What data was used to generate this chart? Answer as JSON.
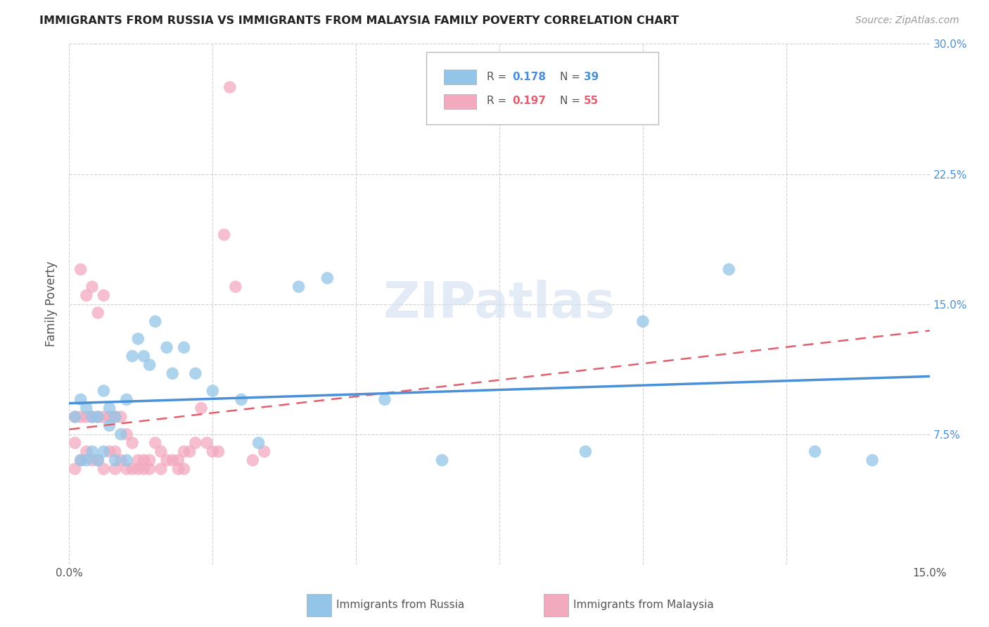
{
  "title": "IMMIGRANTS FROM RUSSIA VS IMMIGRANTS FROM MALAYSIA FAMILY POVERTY CORRELATION CHART",
  "source": "Source: ZipAtlas.com",
  "ylabel": "Family Poverty",
  "xlim": [
    0.0,
    0.15
  ],
  "ylim": [
    0.0,
    0.3
  ],
  "xtick_positions": [
    0.0,
    0.025,
    0.05,
    0.075,
    0.1,
    0.125,
    0.15
  ],
  "xtick_labels": [
    "0.0%",
    "",
    "",
    "",
    "",
    "",
    "15.0%"
  ],
  "ytick_positions": [
    0.0,
    0.075,
    0.15,
    0.225,
    0.3
  ],
  "ytick_labels_right": [
    "",
    "7.5%",
    "15.0%",
    "22.5%",
    "30.0%"
  ],
  "russia_color": "#93C5E8",
  "malaysia_color": "#F2AABF",
  "russia_line_color": "#4A90D9",
  "malaysia_line_color": "#E06070",
  "label_russia": "Immigrants from Russia",
  "label_malaysia": "Immigrants from Malaysia",
  "russia_x": [
    0.001,
    0.002,
    0.002,
    0.003,
    0.003,
    0.004,
    0.004,
    0.005,
    0.005,
    0.006,
    0.006,
    0.007,
    0.007,
    0.008,
    0.008,
    0.009,
    0.01,
    0.01,
    0.011,
    0.012,
    0.013,
    0.014,
    0.015,
    0.017,
    0.018,
    0.02,
    0.022,
    0.025,
    0.03,
    0.033,
    0.04,
    0.045,
    0.055,
    0.065,
    0.09,
    0.1,
    0.115,
    0.13,
    0.14
  ],
  "russia_y": [
    0.085,
    0.095,
    0.06,
    0.09,
    0.06,
    0.085,
    0.065,
    0.085,
    0.06,
    0.1,
    0.065,
    0.09,
    0.08,
    0.085,
    0.06,
    0.075,
    0.095,
    0.06,
    0.12,
    0.13,
    0.12,
    0.115,
    0.14,
    0.125,
    0.11,
    0.125,
    0.11,
    0.1,
    0.095,
    0.07,
    0.16,
    0.165,
    0.095,
    0.06,
    0.065,
    0.14,
    0.17,
    0.065,
    0.06
  ],
  "malaysia_x": [
    0.001,
    0.001,
    0.001,
    0.002,
    0.002,
    0.002,
    0.003,
    0.003,
    0.003,
    0.004,
    0.004,
    0.004,
    0.005,
    0.005,
    0.005,
    0.006,
    0.006,
    0.006,
    0.007,
    0.007,
    0.008,
    0.008,
    0.008,
    0.009,
    0.009,
    0.01,
    0.01,
    0.011,
    0.011,
    0.012,
    0.012,
    0.013,
    0.013,
    0.014,
    0.014,
    0.015,
    0.016,
    0.016,
    0.017,
    0.018,
    0.019,
    0.019,
    0.02,
    0.02,
    0.021,
    0.022,
    0.023,
    0.024,
    0.025,
    0.026,
    0.027,
    0.028,
    0.029,
    0.032,
    0.034
  ],
  "malaysia_y": [
    0.085,
    0.07,
    0.055,
    0.17,
    0.085,
    0.06,
    0.155,
    0.085,
    0.065,
    0.16,
    0.085,
    0.06,
    0.145,
    0.085,
    0.06,
    0.155,
    0.085,
    0.055,
    0.085,
    0.065,
    0.085,
    0.065,
    0.055,
    0.085,
    0.06,
    0.075,
    0.055,
    0.07,
    0.055,
    0.06,
    0.055,
    0.06,
    0.055,
    0.06,
    0.055,
    0.07,
    0.065,
    0.055,
    0.06,
    0.06,
    0.06,
    0.055,
    0.065,
    0.055,
    0.065,
    0.07,
    0.09,
    0.07,
    0.065,
    0.065,
    0.19,
    0.275,
    0.16,
    0.06,
    0.065
  ]
}
